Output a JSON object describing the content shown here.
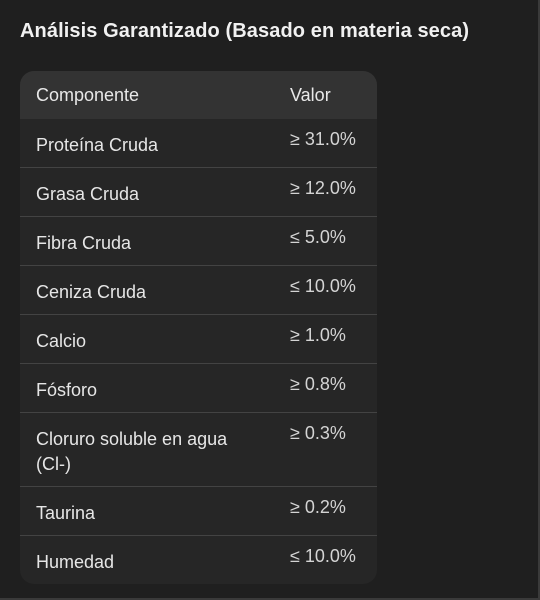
{
  "title": "Análisis Garantizado (Basado en materia seca)",
  "table": {
    "headers": [
      "Componente",
      "Valor"
    ],
    "rows": [
      {
        "component": "Proteína Cruda",
        "value": "≥ 31.0%"
      },
      {
        "component": "Grasa Cruda",
        "value": "≥ 12.0%"
      },
      {
        "component": "Fibra Cruda",
        "value": "≤ 5.0%"
      },
      {
        "component": "Ceniza Cruda",
        "value": "≤ 10.0%"
      },
      {
        "component": "Calcio",
        "value": "≥ 1.0%"
      },
      {
        "component": "Fósforo",
        "value": "≥ 0.8%"
      },
      {
        "component": "Cloruro soluble en agua (Cl-)",
        "value": "≥ 0.3%"
      },
      {
        "component": "Taurina",
        "value": "≥ 0.2%"
      },
      {
        "component": "Humedad",
        "value": "≤ 10.0%"
      }
    ]
  }
}
